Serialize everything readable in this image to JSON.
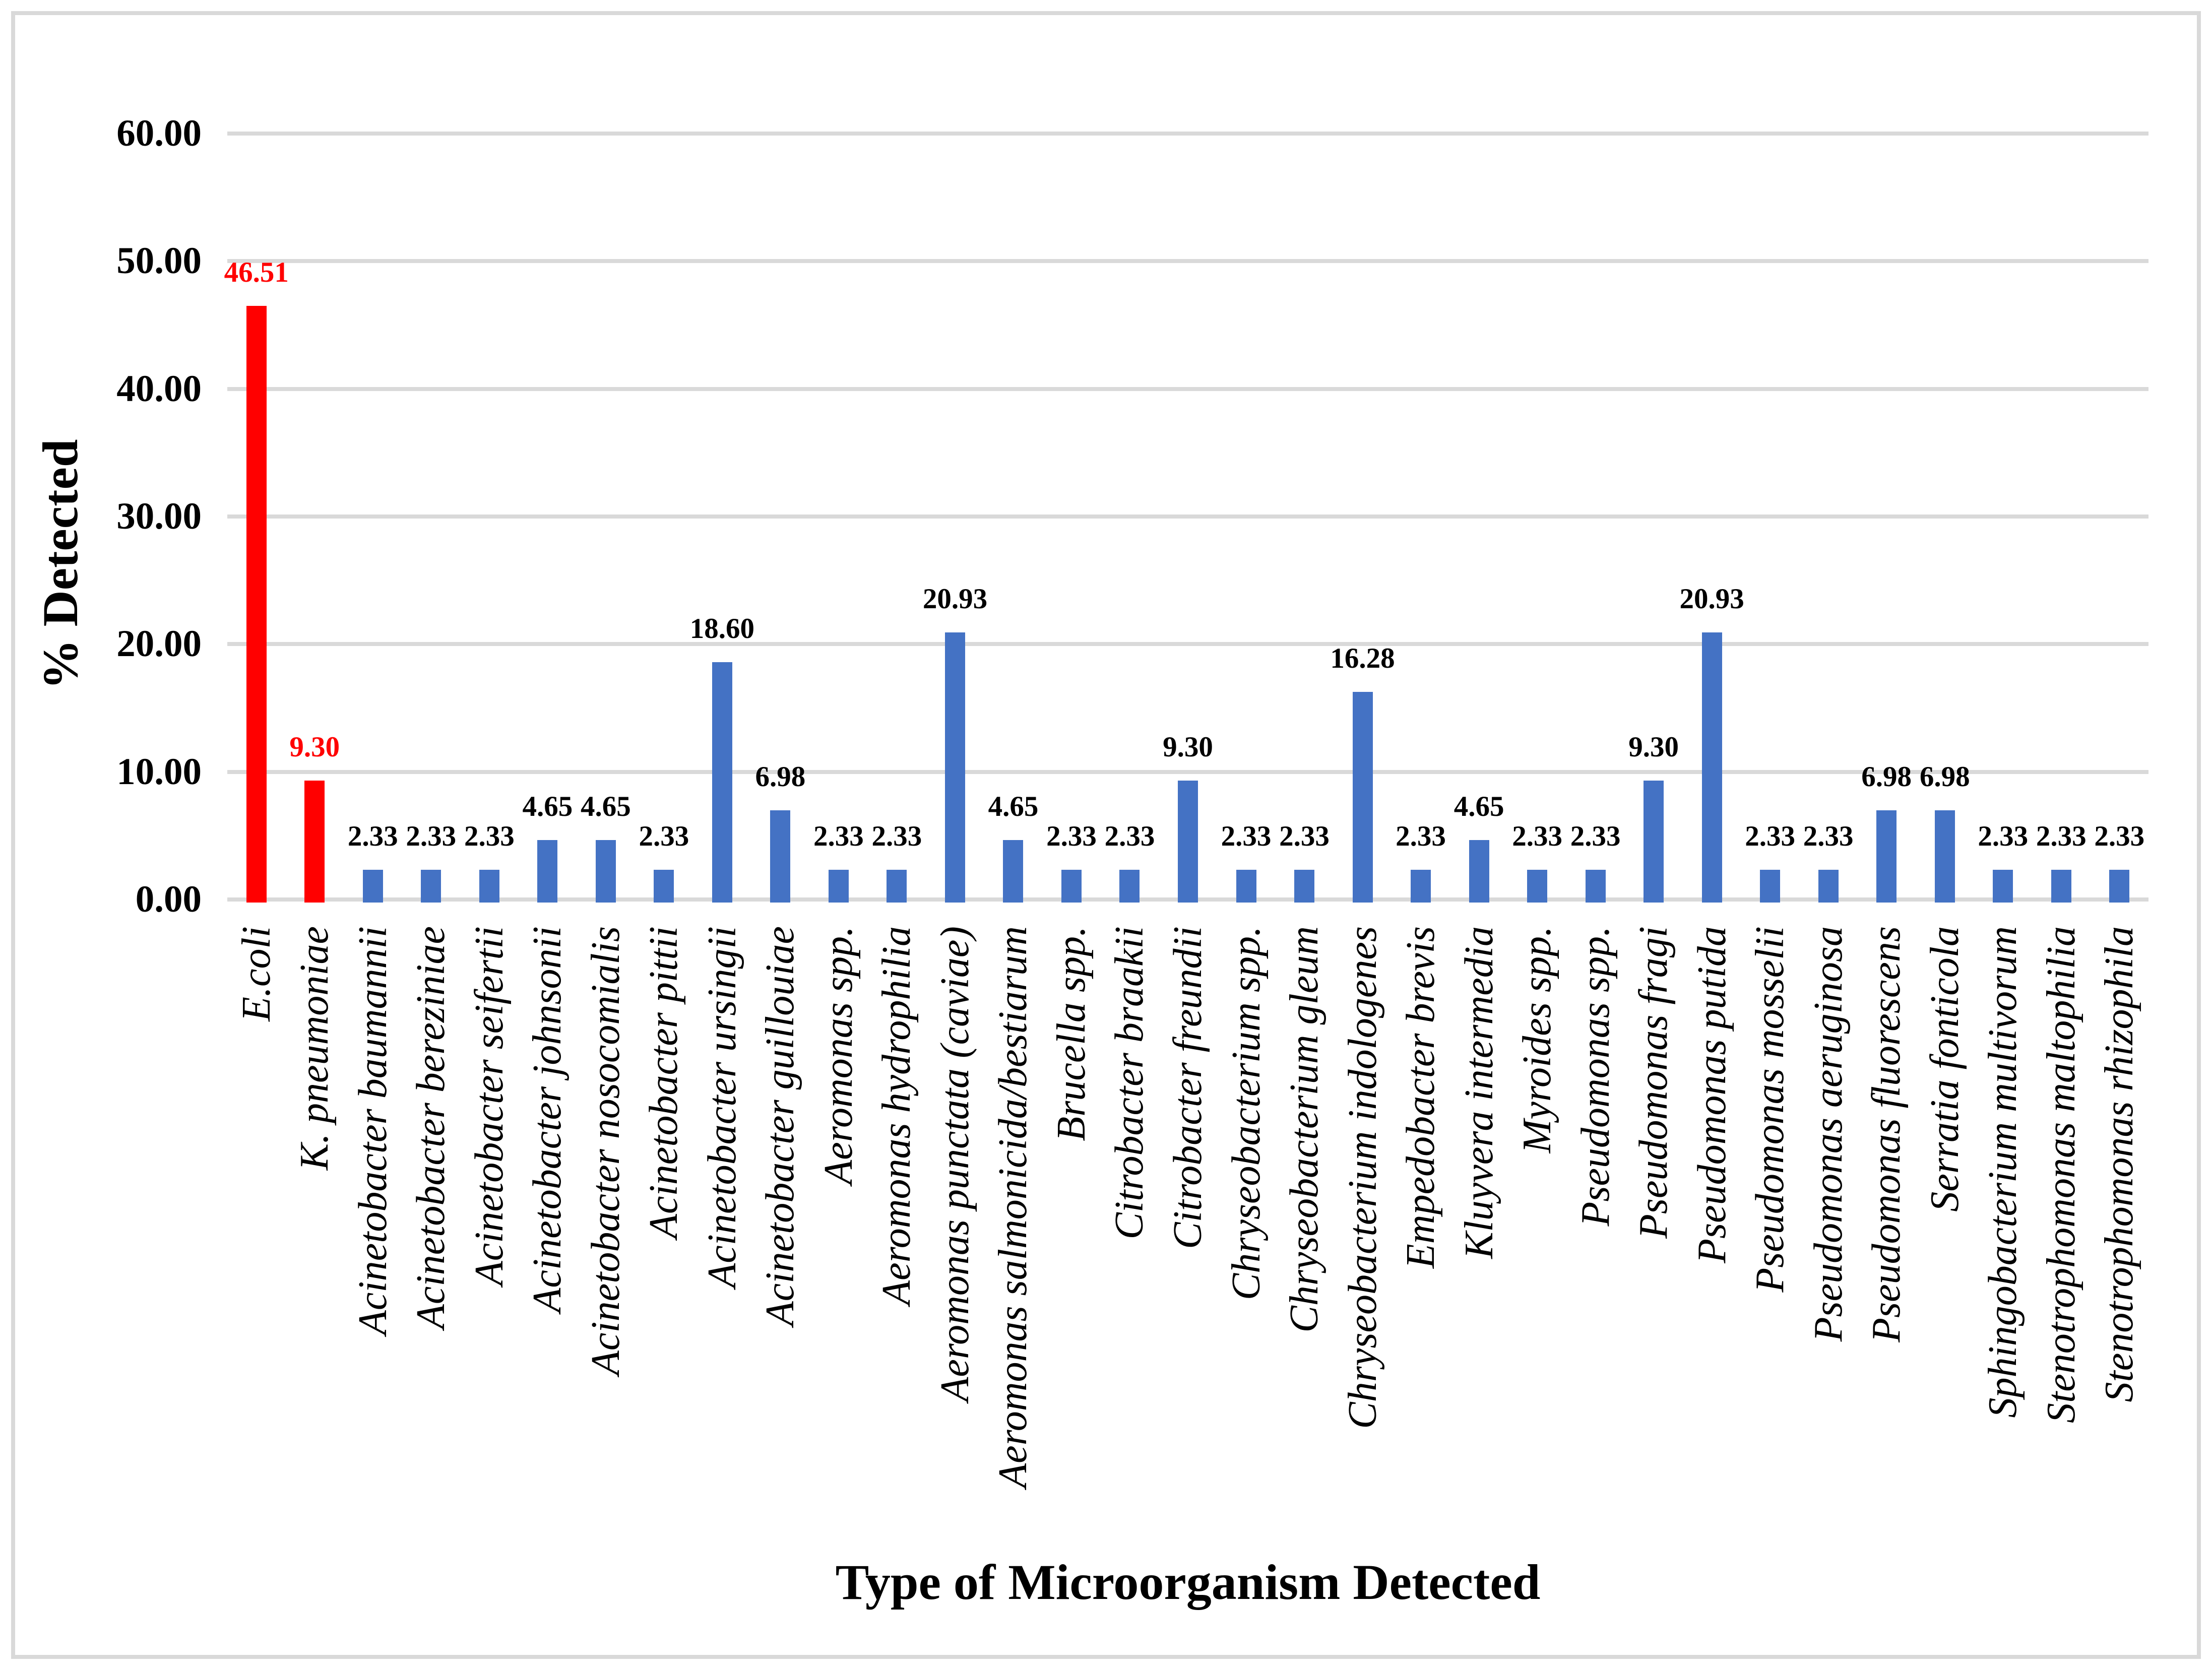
{
  "chart_data": {
    "type": "bar",
    "title": "",
    "xlabel": "Type of Microorganism Detected",
    "ylabel": "% Detected",
    "ylim": [
      0,
      60
    ],
    "ytick_step": 10,
    "grid": true,
    "legend": false,
    "bar_color_default": "#4472C4",
    "bar_color_highlight": "#FF0000",
    "gridline_color": "#D9D9D9",
    "highlighted_indices": [
      0,
      1
    ],
    "yticks": [
      {
        "value": 60,
        "label": "60.00"
      },
      {
        "value": 50,
        "label": "50.00"
      },
      {
        "value": 40,
        "label": "40.00"
      },
      {
        "value": 30,
        "label": "30.00"
      },
      {
        "value": 20,
        "label": "20.00"
      },
      {
        "value": 10,
        "label": "10.00"
      },
      {
        "value": 0,
        "label": "0.00"
      }
    ],
    "categories": [
      "E.coli",
      "K. pneumoniae",
      "Acinetobacter baumannii",
      "Acinetobacter bereziniae",
      "Acinetobacter seifertii",
      "Acinetobacter johnsonii",
      "Acinetobacter nosocomialis",
      "Acinetobacter pittii",
      "Acinetobacter ursingii",
      "Acinetobacter guillouiae",
      "Aeromonas spp.",
      "Aeromonas hydrophilia",
      "Aeromonas punctata (caviae)",
      "Aeromonas salmonicida/bestiarum",
      "Brucella spp.",
      "Citrobacter braakii",
      "Citrobacter freundii",
      "Chryseobacterium spp.",
      "Chryseobacterium gleum",
      "Chryseobacterium indologenes",
      "Empedobacter brevis",
      "Kluyvera intermedia",
      "Myroides spp.",
      "Pseudomonas spp.",
      "Pseudomonas fragi",
      "Pseudomonas putida",
      "Pseudomonas mosselii",
      "Pseudomonas aeruginosa",
      "Pseudomonas fluorescens",
      "Serratia fonticola",
      "Sphingobacterium multivorum",
      "Stenotrophomonas maltophilia",
      "Stenotrophomonas rhizophila"
    ],
    "values": [
      46.51,
      9.3,
      2.33,
      2.33,
      2.33,
      4.65,
      4.65,
      2.33,
      18.6,
      6.98,
      2.33,
      2.33,
      20.93,
      4.65,
      2.33,
      2.33,
      9.3,
      2.33,
      2.33,
      16.28,
      2.33,
      4.65,
      2.33,
      2.33,
      9.3,
      20.93,
      2.33,
      2.33,
      6.98,
      6.98,
      2.33,
      2.33,
      2.33
    ],
    "value_labels": [
      "46.51",
      "9.30",
      "2.33",
      "2.33",
      "2.33",
      "4.65",
      "4.65",
      "2.33",
      "18.60",
      "6.98",
      "2.33",
      "2.33",
      "20.93",
      "4.65",
      "2.33",
      "2.33",
      "9.30",
      "2.33",
      "2.33",
      "16.28",
      "2.33",
      "4.65",
      "2.33",
      "2.33",
      "9.30",
      "20.93",
      "2.33",
      "2.33",
      "6.98",
      "6.98",
      "2.33",
      "2.33",
      "2.33"
    ]
  }
}
